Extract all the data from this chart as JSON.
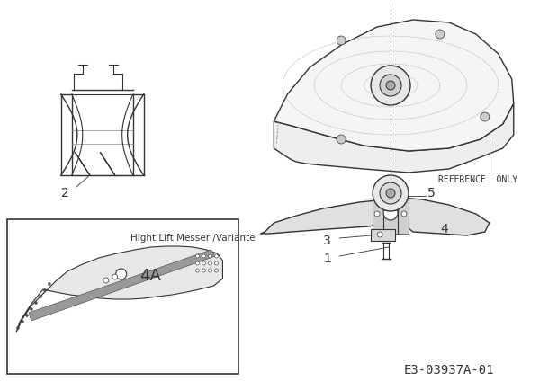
{
  "background_color": "#ffffff",
  "text_color": "#222222",
  "light_gray": "#bbbbbb",
  "mid_gray": "#888888",
  "dark_line": "#333333",
  "diagram_code": "E3-03937A-01",
  "reference_only_text": "REFERENCE  ONLY",
  "inset_label": "Hight Lift Messer /Variante",
  "figsize": [
    6.0,
    4.24
  ],
  "dpi": 100
}
